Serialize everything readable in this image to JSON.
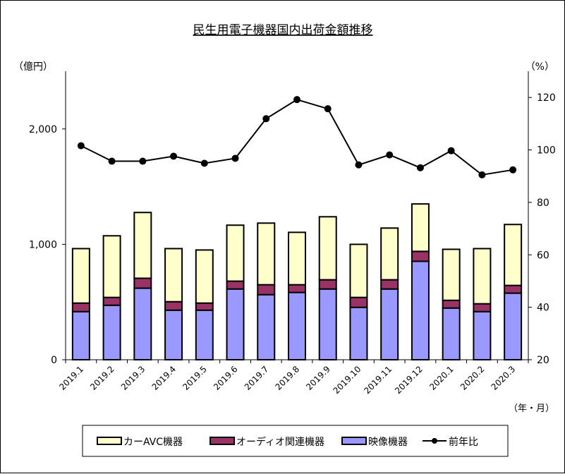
{
  "chart_data": {
    "type": "bar",
    "title": "民生用電子機器国内出荷金額推移",
    "ylabel_left": "（億円）",
    "ylabel_right": "（%）",
    "xlabel": "（年・月）",
    "categories": [
      "2019.1",
      "2019.2",
      "2019.3",
      "2019.4",
      "2019.5",
      "2019.6",
      "2019.7",
      "2019.8",
      "2019.9",
      "2019.10",
      "2019.11",
      "2019.12",
      "2020.1",
      "2020.2",
      "2020.3"
    ],
    "ylim_left": [
      0,
      2500
    ],
    "yticks_left": [
      0,
      1000,
      2000
    ],
    "ytick_labels_left": [
      "0",
      "1,000",
      "2,000"
    ],
    "ylim_right": [
      20,
      130
    ],
    "yticks_right": [
      20,
      40,
      60,
      80,
      100,
      120
    ],
    "grid": false,
    "legend_position": "bottom",
    "series": [
      {
        "name": "映像機器",
        "kind": "stacked-bar",
        "color": "#9999FF",
        "values": [
          417,
          472,
          620,
          429,
          429,
          613,
          564,
          583,
          613,
          454,
          613,
          853,
          448,
          417,
          577
        ]
      },
      {
        "name": "オーディオ関連機器",
        "kind": "stacked-bar",
        "color": "#993366",
        "values": [
          74,
          68,
          86,
          74,
          62,
          68,
          86,
          67,
          80,
          86,
          80,
          86,
          67,
          68,
          67
        ]
      },
      {
        "name": "カーAVC機器",
        "kind": "stacked-bar",
        "color": "#FFFFCC",
        "values": [
          472,
          534,
          570,
          460,
          460,
          485,
          534,
          454,
          546,
          460,
          448,
          411,
          442,
          478,
          528
        ]
      },
      {
        "name": "前年比",
        "kind": "line",
        "axis": "right",
        "color": "#000000",
        "values": [
          101.6,
          95.7,
          95.7,
          97.6,
          94.9,
          96.8,
          111.9,
          119.2,
          115.7,
          94.3,
          98.1,
          93.2,
          99.7,
          90.5,
          92.4
        ]
      }
    ],
    "legend_order": [
      "カーAVC機器",
      "オーディオ関連機器",
      "映像機器",
      "前年比"
    ]
  }
}
